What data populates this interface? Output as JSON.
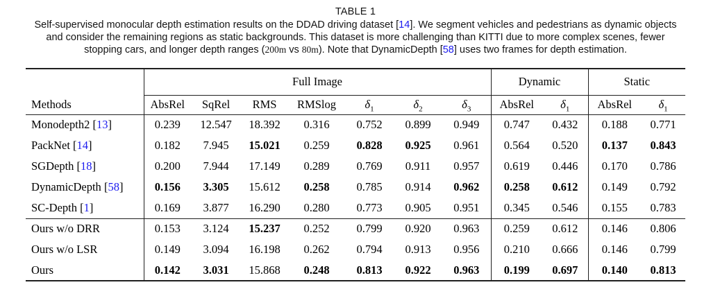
{
  "caption": {
    "title": "TABLE 1",
    "lines": [
      [
        {
          "t": "Self-supervised monocular depth estimation results on the DDAD driving dataset ["
        },
        {
          "t": "14",
          "s": "cite"
        },
        {
          "t": "]. We segment vehicles and pedestrians as dynamic objects"
        }
      ],
      [
        {
          "t": "and consider the remaining regions as static backgrounds. This dataset is more challenging than KITTI due to more complex scenes, fewer"
        }
      ],
      [
        {
          "t": "stopping cars, and longer depth ranges ("
        },
        {
          "t": "200m",
          "s": "math"
        },
        {
          "t": " vs "
        },
        {
          "t": "80m",
          "s": "math"
        },
        {
          "t": "). Note that DynamicDepth ["
        },
        {
          "t": "58",
          "s": "cite"
        },
        {
          "t": "] uses two frames for depth estimation."
        }
      ]
    ]
  },
  "table": {
    "methods_header": "Methods",
    "groups": {
      "full_image": "Full Image",
      "dynamic": "Dynamic",
      "static": "Static"
    },
    "headers": [
      {
        "t": "AbsRel"
      },
      {
        "t": "SqRel"
      },
      {
        "t": "RMS"
      },
      {
        "t": "RMSlog"
      },
      {
        "d": "δ",
        "s": "1"
      },
      {
        "d": "δ",
        "s": "2"
      },
      {
        "d": "δ",
        "s": "3"
      },
      {
        "t": "AbsRel"
      },
      {
        "d": "δ",
        "s": "1"
      },
      {
        "t": "AbsRel"
      },
      {
        "d": "δ",
        "s": "1"
      }
    ],
    "rows": [
      {
        "method": "Monodepth2 ",
        "cite": "13",
        "cells": [
          {
            "v": "0.239"
          },
          {
            "v": "12.547"
          },
          {
            "v": "18.392"
          },
          {
            "v": "0.316"
          },
          {
            "v": "0.752"
          },
          {
            "v": "0.899"
          },
          {
            "v": "0.949"
          },
          {
            "v": "0.747"
          },
          {
            "v": "0.432"
          },
          {
            "v": "0.188"
          },
          {
            "v": "0.771"
          }
        ]
      },
      {
        "method": "PackNet ",
        "cite": "14",
        "cells": [
          {
            "v": "0.182"
          },
          {
            "v": "7.945"
          },
          {
            "v": "15.021",
            "b": 1
          },
          {
            "v": "0.259"
          },
          {
            "v": "0.828",
            "b": 1
          },
          {
            "v": "0.925",
            "b": 1
          },
          {
            "v": "0.961"
          },
          {
            "v": "0.564"
          },
          {
            "v": "0.520"
          },
          {
            "v": "0.137",
            "b": 1
          },
          {
            "v": "0.843",
            "b": 1
          }
        ]
      },
      {
        "method": "SGDepth ",
        "cite": "18",
        "cells": [
          {
            "v": "0.200"
          },
          {
            "v": "7.944"
          },
          {
            "v": "17.149"
          },
          {
            "v": "0.289"
          },
          {
            "v": "0.769"
          },
          {
            "v": "0.911"
          },
          {
            "v": "0.957"
          },
          {
            "v": "0.619"
          },
          {
            "v": "0.446"
          },
          {
            "v": "0.170"
          },
          {
            "v": "0.786"
          }
        ]
      },
      {
        "method": "DynamicDepth ",
        "cite": "58",
        "cells": [
          {
            "v": "0.156",
            "b": 1
          },
          {
            "v": "3.305",
            "b": 1
          },
          {
            "v": "15.612"
          },
          {
            "v": "0.258",
            "b": 1
          },
          {
            "v": "0.785"
          },
          {
            "v": "0.914"
          },
          {
            "v": "0.962",
            "b": 1
          },
          {
            "v": "0.258",
            "b": 1
          },
          {
            "v": "0.612",
            "b": 1
          },
          {
            "v": "0.149"
          },
          {
            "v": "0.792"
          }
        ]
      },
      {
        "method": "SC-Depth ",
        "cite": "1",
        "cells": [
          {
            "v": "0.169"
          },
          {
            "v": "3.877"
          },
          {
            "v": "16.290"
          },
          {
            "v": "0.280"
          },
          {
            "v": "0.773"
          },
          {
            "v": "0.905"
          },
          {
            "v": "0.951"
          },
          {
            "v": "0.345"
          },
          {
            "v": "0.546"
          },
          {
            "v": "0.155"
          },
          {
            "v": "0.783"
          }
        ]
      },
      {
        "method": "Ours w/o DRR",
        "group_start": true,
        "cells": [
          {
            "v": "0.153"
          },
          {
            "v": "3.124"
          },
          {
            "v": "15.237",
            "b": 1
          },
          {
            "v": "0.252"
          },
          {
            "v": "0.799"
          },
          {
            "v": "0.920"
          },
          {
            "v": "0.963"
          },
          {
            "v": "0.259"
          },
          {
            "v": "0.612"
          },
          {
            "v": "0.146"
          },
          {
            "v": "0.806"
          }
        ]
      },
      {
        "method": "Ours w/o LSR",
        "cells": [
          {
            "v": "0.149"
          },
          {
            "v": "3.094"
          },
          {
            "v": "16.198"
          },
          {
            "v": "0.262"
          },
          {
            "v": "0.794"
          },
          {
            "v": "0.913"
          },
          {
            "v": "0.956"
          },
          {
            "v": "0.210"
          },
          {
            "v": "0.666"
          },
          {
            "v": "0.146"
          },
          {
            "v": "0.799"
          }
        ]
      },
      {
        "method": "Ours",
        "cells": [
          {
            "v": "0.142",
            "b": 1
          },
          {
            "v": "3.031",
            "b": 1
          },
          {
            "v": "15.868"
          },
          {
            "v": "0.248",
            "b": 1
          },
          {
            "v": "0.813",
            "b": 1
          },
          {
            "v": "0.922",
            "b": 1
          },
          {
            "v": "0.963",
            "b": 1
          },
          {
            "v": "0.199",
            "b": 1
          },
          {
            "v": "0.697",
            "b": 1
          },
          {
            "v": "0.140",
            "b": 1
          },
          {
            "v": "0.813",
            "b": 1
          }
        ]
      }
    ]
  }
}
